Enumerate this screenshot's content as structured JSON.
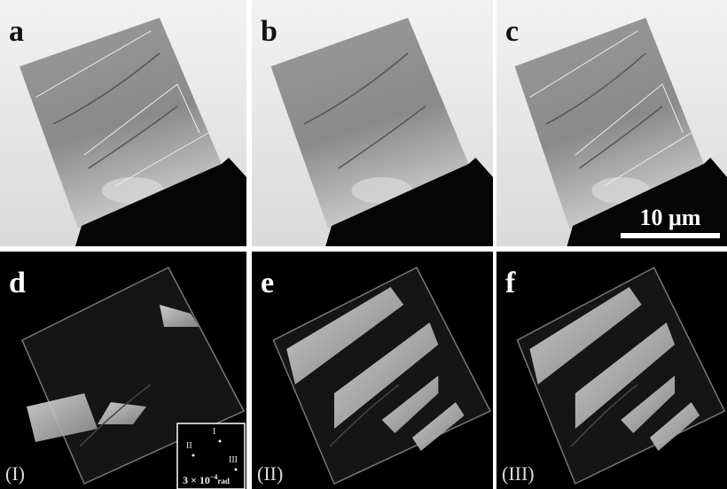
{
  "panels": [
    {
      "label": "a"
    },
    {
      "label": "b"
    },
    {
      "label": "c",
      "scale_bar": "10 μm"
    },
    {
      "label": "d",
      "caption": "(I)",
      "inset": {
        "spots": [
          "I",
          "II",
          "III"
        ],
        "scale": "3 × 10",
        "exponent": "−4",
        "unit": "rad"
      }
    },
    {
      "label": "e",
      "caption": "(II)"
    },
    {
      "label": "f",
      "caption": "(III)"
    }
  ]
}
